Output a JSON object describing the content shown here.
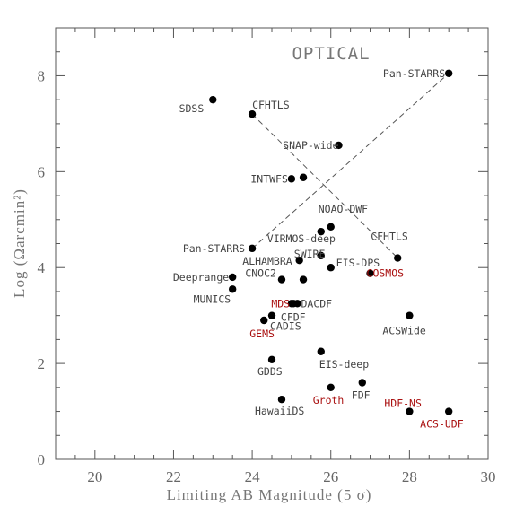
{
  "chart_data": {
    "type": "scatter",
    "title": "OPTICAL",
    "xlabel": "Limiting AB Magnitude (5 σ)",
    "ylabel": "Log (Ωarcmin²)",
    "xlim": [
      19,
      30
    ],
    "ylim": [
      0,
      9
    ],
    "xticks": [
      "20",
      "22",
      "24",
      "26",
      "28",
      "30"
    ],
    "yticks": [
      "0",
      "2",
      "4",
      "6",
      "8"
    ],
    "grid": false,
    "colors": {
      "point": "#000000",
      "label": "#444444",
      "highlight": "#aa1111",
      "axis": "#555555"
    },
    "points": [
      {
        "label": "Pan-STARRS",
        "x": 29.0,
        "y": 8.05,
        "highlight": false
      },
      {
        "label": "SDSS",
        "x": 23.0,
        "y": 7.5,
        "highlight": false
      },
      {
        "label": "CFHTLS",
        "x": 24.0,
        "y": 7.2,
        "highlight": false
      },
      {
        "label": "SNAP-wide",
        "x": 26.2,
        "y": 6.55,
        "highlight": false
      },
      {
        "label": "INTWFS",
        "x": 25.0,
        "y": 5.85,
        "highlight": false
      },
      {
        "label": "",
        "x": 25.3,
        "y": 5.88,
        "highlight": false
      },
      {
        "label": "NOAO-DWF",
        "x": 26.0,
        "y": 4.85,
        "highlight": false
      },
      {
        "label": "VIRMOS-deep",
        "x": 25.75,
        "y": 4.75,
        "highlight": false
      },
      {
        "label": "CFHTLS",
        "x": 27.7,
        "y": 4.2,
        "highlight": false
      },
      {
        "label": "Pan-STARRS",
        "x": 24.0,
        "y": 4.4,
        "highlight": false
      },
      {
        "label": "SWIRE",
        "x": 25.75,
        "y": 4.25,
        "highlight": false
      },
      {
        "label": "ALHAMBRA",
        "x": 25.2,
        "y": 4.15,
        "highlight": false
      },
      {
        "label": "EIS-DPS",
        "x": 26.0,
        "y": 4.0,
        "highlight": false
      },
      {
        "label": "COSMOS",
        "x": 27.0,
        "y": 3.88,
        "highlight": true
      },
      {
        "label": "Deeprange",
        "x": 23.5,
        "y": 3.8,
        "highlight": false
      },
      {
        "label": "CNOC2",
        "x": 24.75,
        "y": 3.75,
        "highlight": false
      },
      {
        "label": "",
        "x": 25.3,
        "y": 3.75,
        "highlight": false
      },
      {
        "label": "MUNICS",
        "x": 23.5,
        "y": 3.55,
        "highlight": false
      },
      {
        "label": "CFDF",
        "x": 25.0,
        "y": 3.25,
        "highlight": false
      },
      {
        "label": "MDS",
        "x": 25.05,
        "y": 3.25,
        "highlight": true
      },
      {
        "label": "DACDF",
        "x": 25.15,
        "y": 3.25,
        "highlight": false
      },
      {
        "label": "CADIS",
        "x": 24.5,
        "y": 3.0,
        "highlight": false
      },
      {
        "label": "ACSWide",
        "x": 28.0,
        "y": 3.0,
        "highlight": false
      },
      {
        "label": "GEMS",
        "x": 24.3,
        "y": 2.9,
        "highlight": true
      },
      {
        "label": "EIS-deep",
        "x": 25.75,
        "y": 2.25,
        "highlight": false
      },
      {
        "label": "GDDS",
        "x": 24.5,
        "y": 2.08,
        "highlight": false
      },
      {
        "label": "FDF",
        "x": 26.8,
        "y": 1.6,
        "highlight": false
      },
      {
        "label": "Groth",
        "x": 26.0,
        "y": 1.5,
        "highlight": true
      },
      {
        "label": "HawaiiDS",
        "x": 24.75,
        "y": 1.25,
        "highlight": false
      },
      {
        "label": "HDF-NS",
        "x": 28.0,
        "y": 1.0,
        "highlight": true
      },
      {
        "label": "ACS-UDF",
        "x": 29.0,
        "y": 1.0,
        "highlight": true
      }
    ],
    "trend_lines": [
      {
        "from": [
          24.0,
          7.2
        ],
        "to": [
          27.7,
          4.2
        ]
      },
      {
        "from": [
          24.0,
          4.4
        ],
        "to": [
          29.0,
          8.05
        ]
      }
    ]
  }
}
